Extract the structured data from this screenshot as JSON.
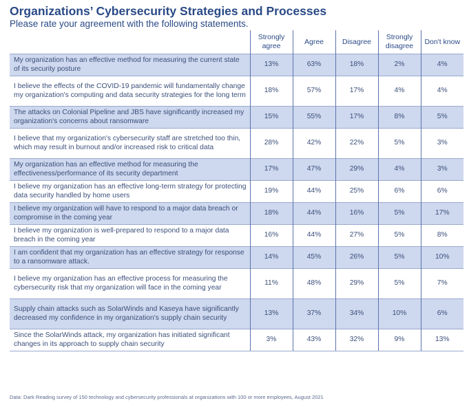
{
  "title": "Organizations’ Cybersecurity Strategies and Processes",
  "subtitle": "Please rate your agreement with the following statements.",
  "source": "Data: Dark Reading survey of 150 technology and cybersecurity professionals at organizations with 100 or more employees, August 2021",
  "colors": {
    "title": "#2a4a86",
    "text": "#3b4f7a",
    "shaded_row": "#ced8ee",
    "divider": "#5b72ad"
  },
  "chart_data": {
    "type": "table",
    "title": "Organizations’ Cybersecurity Strategies and Processes",
    "subtitle": "Please rate your agreement with the following statements.",
    "columns": [
      "Strongly agree",
      "Agree",
      "Disagree",
      "Strongly disagree",
      "Don't know"
    ],
    "rows": [
      {
        "statement": "My organization has an effective method for measuring the current state of its security posture",
        "values": [
          "13%",
          "63%",
          "18%",
          "2%",
          "4%"
        ]
      },
      {
        "statement": "I believe the effects of the COVID-19 pandemic will fundamentally change my organization's computing and data security strategies for the long term",
        "values": [
          "18%",
          "57%",
          "17%",
          "4%",
          "4%"
        ]
      },
      {
        "statement": "The attacks on Colonial Pipeline and JBS have significantly increased my organization's concerns about ransomware",
        "values": [
          "15%",
          "55%",
          "17%",
          "8%",
          "5%"
        ]
      },
      {
        "statement": "I believe that my organization's cybersecurity staff are stretched too thin, which may result in burnout and/or increased risk to critical data",
        "values": [
          "28%",
          "42%",
          "22%",
          "5%",
          "3%"
        ]
      },
      {
        "statement": "My organization has an effective method for measuring the effectiveness/performance of its security department",
        "values": [
          "17%",
          "47%",
          "29%",
          "4%",
          "3%"
        ]
      },
      {
        "statement": "I believe my organization has an effective long-term strategy for protecting data security handled by home users",
        "values": [
          "19%",
          "44%",
          "25%",
          "6%",
          "6%"
        ]
      },
      {
        "statement": "I believe my organization will have to respond to a major data breach or compromise in the coming year",
        "values": [
          "18%",
          "44%",
          "16%",
          "5%",
          "17%"
        ]
      },
      {
        "statement": "I believe my organization is well-prepared to respond to a major data breach in the coming year",
        "values": [
          "16%",
          "44%",
          "27%",
          "5%",
          "8%"
        ]
      },
      {
        "statement": "I am confident that my organization has an effective strategy for response to a ransomware attack.",
        "values": [
          "14%",
          "45%",
          "26%",
          "5%",
          "10%"
        ]
      },
      {
        "statement": "I believe my organization has an effective process for measuring the cybersecurity risk that my organization will face in the coming year",
        "values": [
          "11%",
          "48%",
          "29%",
          "5%",
          "7%"
        ]
      },
      {
        "statement": "Supply chain attacks such as SolarWinds and Kaseya have significantly decreased my confidence in my organization's supply chain security",
        "values": [
          "13%",
          "37%",
          "34%",
          "10%",
          "6%"
        ]
      },
      {
        "statement": "Since the SolarWinds attack, my organization has initiated significant changes in its approach to supply chain security",
        "values": [
          "3%",
          "43%",
          "32%",
          "9%",
          "13%"
        ]
      }
    ]
  }
}
